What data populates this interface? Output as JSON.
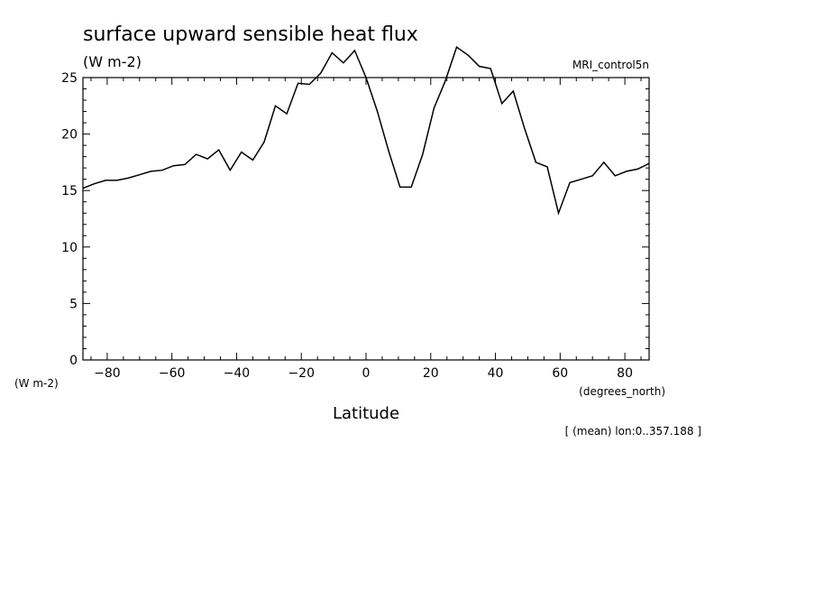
{
  "chart_data": {
    "type": "line",
    "title": "surface upward sensible heat flux",
    "units": "(W m-2)",
    "ylabel": "(W m-2)",
    "model": "MRI_control5n",
    "xlabel": "Latitude",
    "x_units": "(degrees_north)",
    "footnote": "[ (mean) lon:0..357.188 ]",
    "xlim": [
      -87.5,
      87.5
    ],
    "ylim": [
      0,
      25
    ],
    "x_ticks": [
      -80,
      -60,
      -40,
      -20,
      0,
      20,
      40,
      60,
      80
    ],
    "y_ticks": [
      0,
      5,
      10,
      15,
      20,
      25
    ],
    "grid": false,
    "series": [
      {
        "x": [
          -87.5,
          -84.0,
          -80.5,
          -77.0,
          -73.5,
          -70.0,
          -66.5,
          -63.0,
          -59.5,
          -56.0,
          -52.5,
          -49.0,
          -45.5,
          -42.0,
          -38.5,
          -35.0,
          -31.5,
          -28.0,
          -24.5,
          -21.0,
          -17.5,
          -14.0,
          -10.5,
          -7.0,
          -3.5,
          0.0,
          3.5,
          7.0,
          10.5,
          14.0,
          17.5,
          21.0,
          24.5,
          28.0,
          31.5,
          35.0,
          38.5,
          42.0,
          45.5,
          49.0,
          52.5,
          56.0,
          59.5,
          63.0,
          66.5,
          70.0,
          73.5,
          77.0,
          80.5,
          84.0,
          87.5
        ],
        "y": [
          15.2,
          15.6,
          15.9,
          15.9,
          16.1,
          16.4,
          16.7,
          16.8,
          17.2,
          17.3,
          18.2,
          17.8,
          18.6,
          16.8,
          18.4,
          17.7,
          19.3,
          22.5,
          21.8,
          24.5,
          24.4,
          25.4,
          27.2,
          26.3,
          27.4,
          25.0,
          22.0,
          18.5,
          15.3,
          15.3,
          18.2,
          22.3,
          24.7,
          27.7,
          27.0,
          26.0,
          25.8,
          22.7,
          23.8,
          20.5,
          17.5,
          17.1,
          13.0,
          15.7,
          16.0,
          16.3,
          17.5,
          16.3,
          16.7,
          16.9,
          17.4
        ]
      }
    ]
  }
}
